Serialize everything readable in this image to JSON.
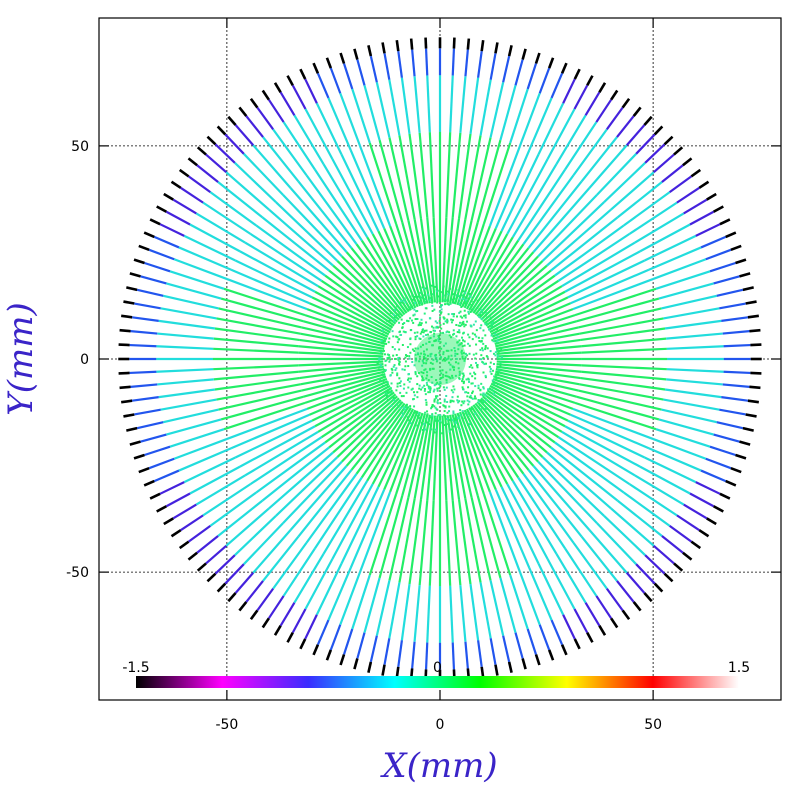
{
  "chart_data": {
    "type": "line",
    "subtype": "radial-profile-map",
    "title": "",
    "xlabel": "X(mm)",
    "ylabel": "Y(mm)",
    "xlim": [
      -80,
      80
    ],
    "ylim": [
      -80,
      80
    ],
    "x_ticks": [
      -50,
      0,
      50
    ],
    "y_ticks": [
      -50,
      0,
      50
    ],
    "x_tick_labels": [
      "-50",
      "0",
      "50"
    ],
    "y_tick_labels": [
      "-50",
      "0",
      "50"
    ],
    "grid": true,
    "grid_style": "dotted",
    "radial_profiles": {
      "count": 140,
      "outer_radius_mm": 74,
      "end_markers": "black"
    },
    "colorbar": {
      "min": -1.5,
      "max": 1.5,
      "labels": [
        "-1.5",
        "0",
        "1.5"
      ],
      "colormap": [
        "#000000",
        "#ff00ff",
        "#3a2cff",
        "#00ffff",
        "#00ff00",
        "#ffff00",
        "#ff0000",
        "#ffffff"
      ],
      "placement": "bottom"
    },
    "colors": {
      "center_value_color": "#22ee66",
      "mid_value_color": "#22dddd",
      "edge_value_color": "#2255ee",
      "diagonal_edge_color": "#4422dd"
    }
  }
}
